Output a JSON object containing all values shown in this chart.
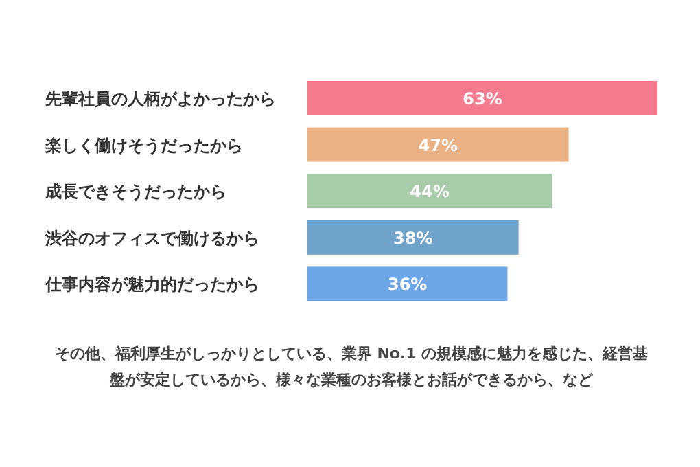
{
  "chart_data": {
    "type": "bar",
    "orientation": "horizontal",
    "categories": [
      "先輩社員の人柄がよかったから",
      "楽しく働けそうだったから",
      "成長できそうだったから",
      "渋谷のオフィスで働けるから",
      "仕事内容が魅力的だったから"
    ],
    "values": [
      63,
      47,
      44,
      38,
      36
    ],
    "colors": [
      "#f47b8e",
      "#e9b184",
      "#a8cbaa",
      "#6fa3c9",
      "#6ea7e8"
    ],
    "value_labels": [
      "63%",
      "47%",
      "44%",
      "38%",
      "36%"
    ],
    "annotations": [
      "その他、福利厚生がしっかりとしている、業界 No.1 の規模感に魅力を感じた、経営基盤が安定しているから、様々な業種のお客様とお話ができるから、など"
    ]
  }
}
